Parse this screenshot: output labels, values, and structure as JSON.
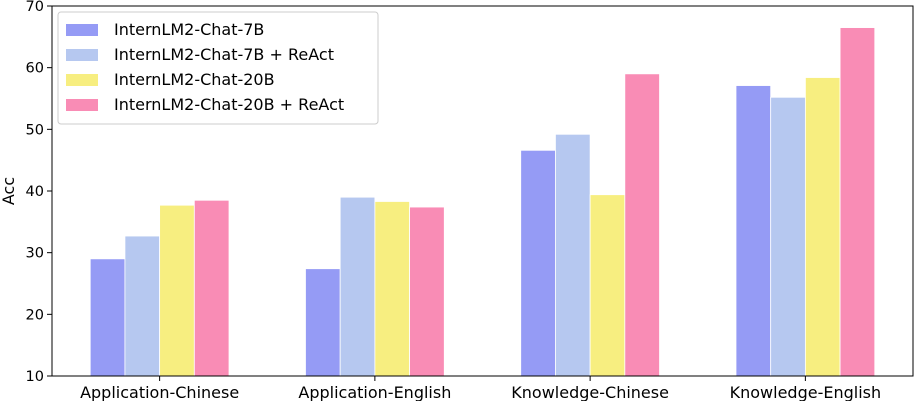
{
  "chart_data": {
    "type": "bar",
    "title": "",
    "xlabel": "",
    "ylabel": "Acc",
    "ylim": [
      10,
      70
    ],
    "yticks": [
      10,
      20,
      30,
      40,
      50,
      60,
      70
    ],
    "grid": false,
    "legend_position": "top-left",
    "categories": [
      "Application-Chinese",
      "Application-English",
      "Knowledge-Chinese",
      "Knowledge-English"
    ],
    "series": [
      {
        "name": "InternLM2-Chat-7B",
        "color": "#959bf5",
        "values": [
          29.0,
          27.4,
          46.6,
          57.1
        ]
      },
      {
        "name": "InternLM2-Chat-7B + ReAct",
        "color": "#b6c8f0",
        "values": [
          32.7,
          39.0,
          49.2,
          55.2
        ]
      },
      {
        "name": "InternLM2-Chat-20B",
        "color": "#f7ee80",
        "values": [
          37.7,
          38.3,
          39.4,
          58.4
        ]
      },
      {
        "name": "InternLM2-Chat-20B + ReAct",
        "color": "#f98cb5",
        "values": [
          38.5,
          37.4,
          59.0,
          66.5
        ]
      }
    ]
  }
}
